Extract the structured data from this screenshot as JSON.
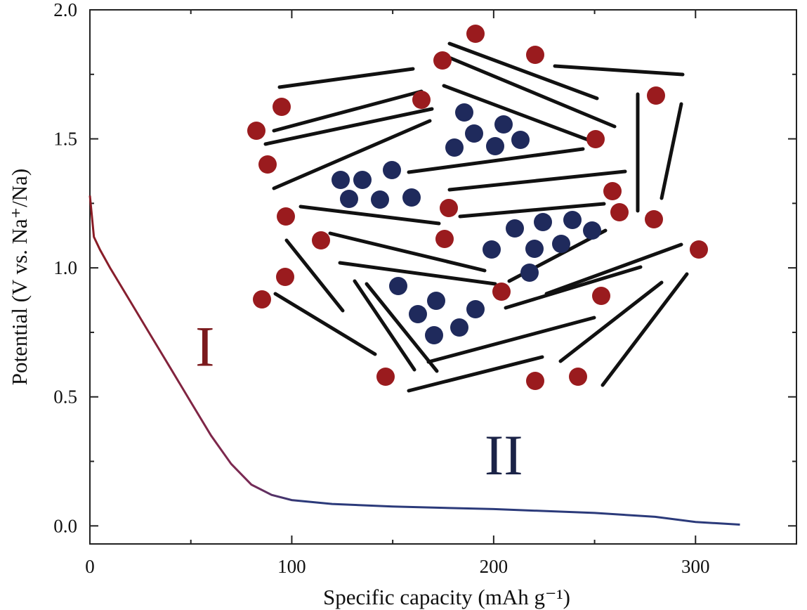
{
  "chart_data": {
    "type": "line",
    "xlabel": "Specific capacity (mAh g⁻¹)",
    "ylabel": "Potential (V vs. Na⁺/Na)",
    "xlim": [
      0,
      350
    ],
    "ylim": [
      -0.07,
      2.0
    ],
    "x_ticks": [
      0,
      100,
      200,
      300
    ],
    "x_tick_labels": [
      "0",
      "100",
      "200",
      "300"
    ],
    "y_ticks": [
      0.0,
      0.5,
      1.0,
      1.5,
      2.0
    ],
    "y_tick_labels": [
      "0.0",
      "0.5",
      "1.0",
      "1.5",
      "2.0"
    ],
    "grid": false,
    "annotations": [
      {
        "text": "I",
        "x": 57,
        "y": 0.62,
        "color": "#7b1a1d"
      },
      {
        "text": "II",
        "x": 205,
        "y": 0.2,
        "color": "#1b2347"
      }
    ],
    "series": [
      {
        "color_start": "#8a1c24",
        "color_end": "#2b3a7a",
        "x": [
          0,
          2,
          5,
          10,
          20,
          30,
          40,
          50,
          60,
          70,
          80,
          90,
          100,
          120,
          150,
          200,
          250,
          280,
          300,
          322
        ],
        "y": [
          1.28,
          1.12,
          1.07,
          1.0,
          0.87,
          0.74,
          0.61,
          0.48,
          0.35,
          0.24,
          0.16,
          0.12,
          0.1,
          0.085,
          0.075,
          0.065,
          0.05,
          0.035,
          0.015,
          0.005
        ]
      }
    ]
  },
  "inset": {
    "description_colors": {
      "red_particle": "#9a1b1e",
      "blue_particle": "#1f2a5c",
      "sheet": "#111111"
    }
  }
}
